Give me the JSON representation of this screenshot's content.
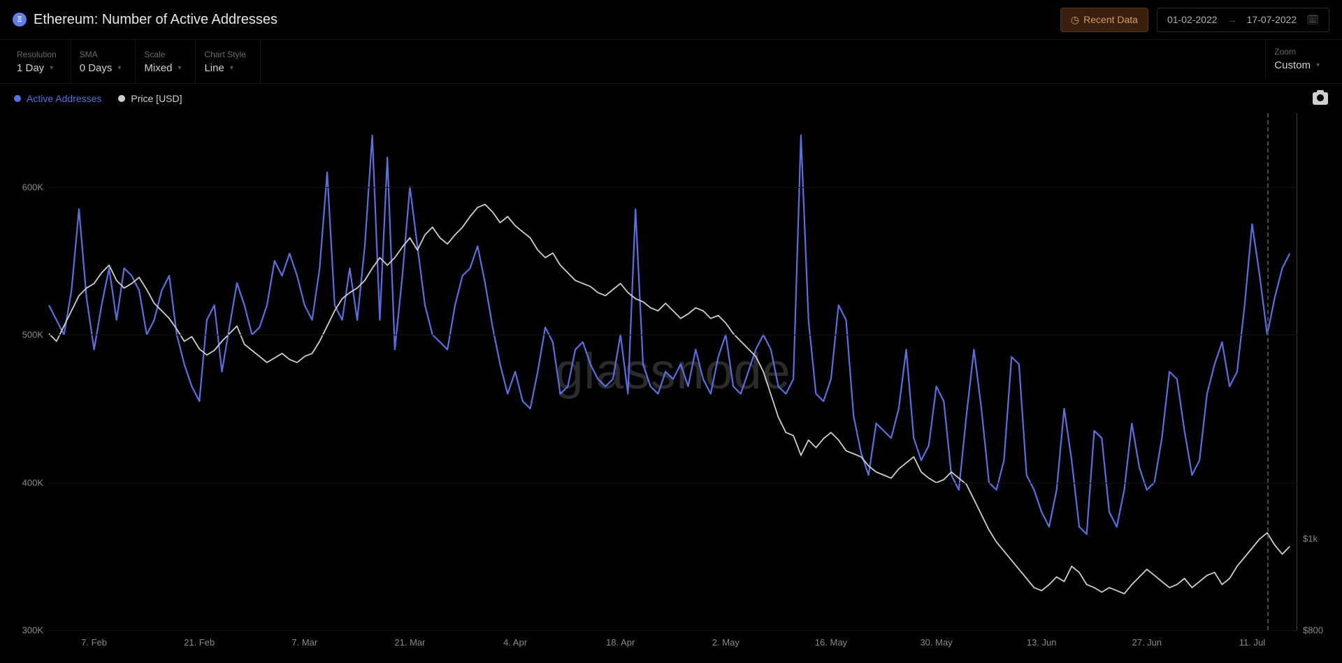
{
  "header": {
    "title": "Ethereum: Number of Active Addresses",
    "icon_name": "ethereum-icon",
    "recent_data_label": "Recent Data",
    "date_from": "01-02-2022",
    "date_to": "17-07-2022"
  },
  "controls": {
    "resolution_label": "Resolution",
    "resolution_value": "1 Day",
    "sma_label": "SMA",
    "sma_value": "0 Days",
    "scale_label": "Scale",
    "scale_value": "Mixed",
    "chart_style_label": "Chart Style",
    "chart_style_value": "Line",
    "zoom_label": "Zoom",
    "zoom_value": "Custom"
  },
  "legend": {
    "series1_label": "Active Addresses",
    "series1_color": "#5b6fe0",
    "series2_label": "Price [USD]",
    "series2_color": "#cfcfcf"
  },
  "chart": {
    "type": "line",
    "background_color": "#000000",
    "grid_color": "#141414",
    "watermark": "glassnode",
    "left_axis": {
      "min": 300000,
      "max": 650000,
      "ticks": [
        {
          "v": 600000,
          "label": "600K"
        },
        {
          "v": 500000,
          "label": "500K"
        },
        {
          "v": 400000,
          "label": "400K"
        },
        {
          "v": 300000,
          "label": "300K"
        }
      ],
      "label_color": "#8a8a8a",
      "label_fontsize": 13
    },
    "right_axis": {
      "min": 800,
      "max": 4200,
      "ticks": [
        {
          "v": 1400,
          "label": "$1k"
        },
        {
          "v": 800,
          "label": "$800"
        }
      ],
      "label_color": "#8a8a8a",
      "label_fontsize": 13
    },
    "x_axis": {
      "min": 0,
      "max": 166,
      "ticks": [
        {
          "v": 6,
          "label": "7. Feb"
        },
        {
          "v": 20,
          "label": "21. Feb"
        },
        {
          "v": 34,
          "label": "7. Mar"
        },
        {
          "v": 48,
          "label": "21. Mar"
        },
        {
          "v": 62,
          "label": "4. Apr"
        },
        {
          "v": 76,
          "label": "18. Apr"
        },
        {
          "v": 90,
          "label": "2. May"
        },
        {
          "v": 104,
          "label": "16. May"
        },
        {
          "v": 118,
          "label": "30. May"
        },
        {
          "v": 132,
          "label": "13. Jun"
        },
        {
          "v": 146,
          "label": "27. Jun"
        },
        {
          "v": 160,
          "label": "11. Jul"
        }
      ],
      "now_marker_x": 162,
      "label_color": "#8a8a8a",
      "label_fontsize": 13
    },
    "series": [
      {
        "name": "active_addresses",
        "axis": "left",
        "color": "#5b6fe0",
        "line_width": 2.2,
        "data": [
          520,
          510,
          500,
          530,
          585,
          525,
          490,
          520,
          545,
          510,
          545,
          540,
          530,
          500,
          510,
          530,
          540,
          500,
          480,
          465,
          455,
          510,
          520,
          475,
          505,
          535,
          520,
          500,
          505,
          520,
          550,
          540,
          555,
          540,
          520,
          510,
          545,
          610,
          520,
          510,
          545,
          510,
          560,
          635,
          510,
          620,
          490,
          540,
          600,
          560,
          520,
          500,
          495,
          490,
          520,
          540,
          545,
          560,
          535,
          505,
          480,
          460,
          475,
          455,
          450,
          475,
          505,
          495,
          460,
          465,
          490,
          495,
          480,
          470,
          465,
          470,
          500,
          460,
          585,
          480,
          465,
          460,
          475,
          470,
          480,
          465,
          490,
          470,
          460,
          485,
          500,
          465,
          460,
          475,
          490,
          500,
          490,
          465,
          460,
          470,
          635,
          510,
          460,
          455,
          470,
          520,
          510,
          445,
          420,
          405,
          440,
          435,
          430,
          450,
          490,
          430,
          415,
          425,
          465,
          455,
          405,
          395,
          445,
          490,
          450,
          400,
          395,
          415,
          485,
          480,
          405,
          395,
          380,
          370,
          395,
          450,
          415,
          370,
          365,
          435,
          430,
          380,
          370,
          395,
          440,
          410,
          395,
          400,
          430,
          475,
          470,
          435,
          405,
          415,
          460,
          480,
          495,
          465,
          475,
          520,
          575,
          540,
          500,
          525,
          545,
          555
        ]
      },
      {
        "name": "price_usd",
        "axis": "right",
        "color": "#cfcfcf",
        "line_width": 1.8,
        "data": [
          2750,
          2700,
          2800,
          2900,
          3000,
          3050,
          3080,
          3150,
          3200,
          3100,
          3050,
          3080,
          3120,
          3040,
          2950,
          2900,
          2850,
          2780,
          2700,
          2730,
          2650,
          2610,
          2640,
          2700,
          2750,
          2800,
          2680,
          2640,
          2600,
          2560,
          2590,
          2620,
          2580,
          2560,
          2600,
          2620,
          2700,
          2800,
          2900,
          2980,
          3020,
          3050,
          3100,
          3180,
          3250,
          3200,
          3250,
          3320,
          3380,
          3300,
          3400,
          3450,
          3380,
          3340,
          3400,
          3450,
          3520,
          3580,
          3600,
          3550,
          3480,
          3520,
          3460,
          3420,
          3380,
          3300,
          3250,
          3280,
          3200,
          3150,
          3100,
          3080,
          3060,
          3020,
          3000,
          3040,
          3080,
          3020,
          2980,
          2960,
          2920,
          2900,
          2950,
          2900,
          2850,
          2880,
          2920,
          2900,
          2850,
          2870,
          2820,
          2750,
          2700,
          2650,
          2600,
          2500,
          2350,
          2200,
          2100,
          2080,
          1950,
          2050,
          2000,
          2060,
          2100,
          2050,
          1980,
          1960,
          1940,
          1880,
          1840,
          1820,
          1800,
          1860,
          1900,
          1940,
          1840,
          1800,
          1770,
          1790,
          1840,
          1800,
          1760,
          1660,
          1560,
          1460,
          1380,
          1320,
          1260,
          1200,
          1140,
          1080,
          1060,
          1100,
          1150,
          1120,
          1220,
          1180,
          1100,
          1080,
          1050,
          1080,
          1060,
          1040,
          1100,
          1150,
          1200,
          1160,
          1120,
          1080,
          1100,
          1140,
          1080,
          1120,
          1160,
          1180,
          1100,
          1140,
          1220,
          1280,
          1340,
          1400,
          1440,
          1360,
          1300,
          1350
        ]
      }
    ]
  }
}
